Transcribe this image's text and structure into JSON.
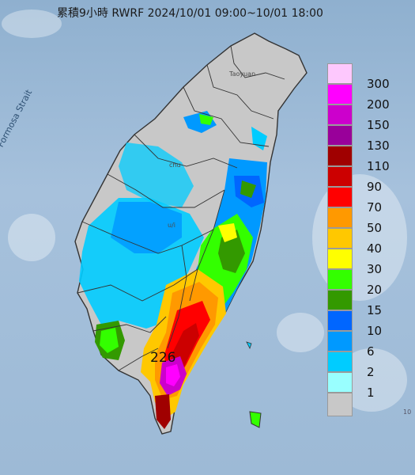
{
  "title": "累積9小時 RWRF 2024/10/01 09:00~10/01 18:00",
  "map": {
    "sea_label": "Formosa Strait",
    "max_value_label": "226",
    "city_labels": [
      "Taoyuan",
      "chu",
      "u/i"
    ],
    "edge_label": "10"
  },
  "legend": {
    "labels": [
      "300",
      "200",
      "150",
      "130",
      "110",
      "90",
      "70",
      "50",
      "40",
      "30",
      "20",
      "15",
      "10",
      "6",
      "2",
      "1"
    ],
    "colors": [
      "#fdc8fd",
      "#ff00ff",
      "#cc00cc",
      "#99009a",
      "#a00000",
      "#cc0000",
      "#ff0000",
      "#ff9900",
      "#ffc800",
      "#ffff00",
      "#33ff00",
      "#339900",
      "#0066ff",
      "#0099ff",
      "#00ccff",
      "#99ffff",
      "#c8c8c8"
    ]
  },
  "colors": {
    "sea": "#9dbad6",
    "land_gray": "#c8c8c8",
    "border": "#333333"
  }
}
